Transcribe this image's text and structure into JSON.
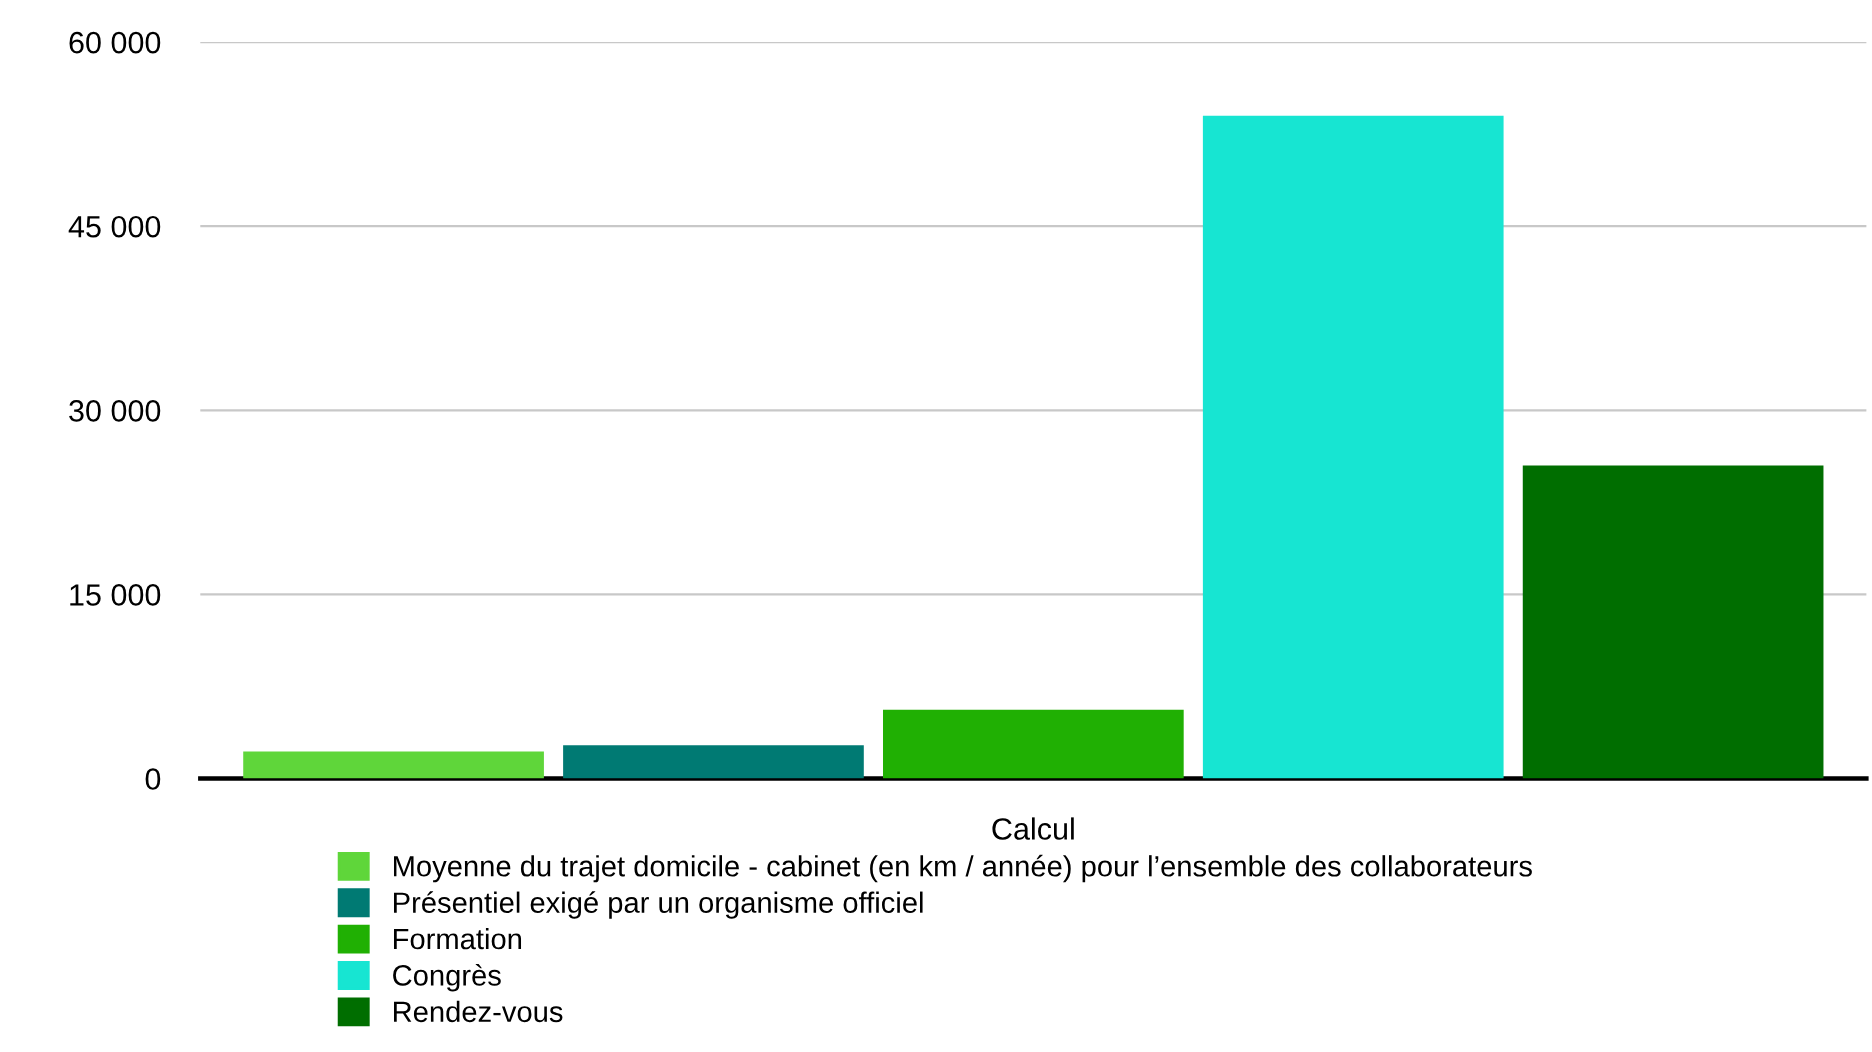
{
  "chart_data": {
    "type": "bar",
    "categories": [
      "Calcul"
    ],
    "series": [
      {
        "name": "Moyenne du trajet domicile - cabinet (en km / année) pour l’ensemble des collaborateurs",
        "color": "#5fd63a",
        "values": [
          2200
        ]
      },
      {
        "name": "Présentiel exigé par un organisme officiel",
        "color": "#007a73",
        "values": [
          2700
        ]
      },
      {
        "name": "Formation",
        "color": "#20b003",
        "values": [
          5600
        ]
      },
      {
        "name": "Congrès",
        "color": "#17e5d2",
        "values": [
          54000
        ]
      },
      {
        "name": "Rendez-vous",
        "color": "#006e00",
        "values": [
          25500
        ]
      }
    ],
    "ylim": [
      0,
      60000
    ],
    "yticks": [
      0,
      {
        "value": 15000,
        "label": "15 000"
      },
      {
        "value": 30000,
        "label": "30 000"
      },
      {
        "value": 45000,
        "label": "45 000"
      },
      {
        "value": 60000,
        "label": "60 000"
      }
    ],
    "grid": "y",
    "legend": "bottom"
  }
}
